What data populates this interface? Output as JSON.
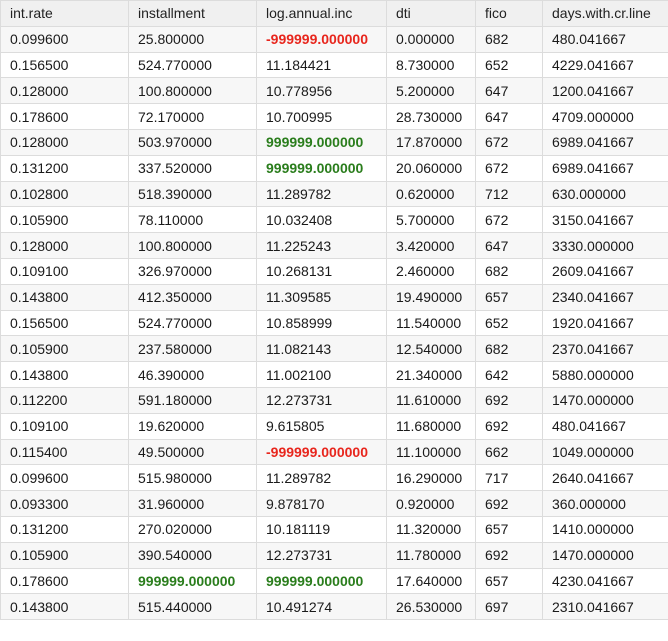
{
  "columns": [
    "int.rate",
    "installment",
    "log.annual.inc",
    "dti",
    "fico",
    "days.with.cr.line"
  ],
  "colors": {
    "header_bg": "#f0f0f0",
    "row_odd_bg": "#f7f7f7",
    "row_even_bg": "#ffffff",
    "border": "#dcdcdc",
    "negative_sentinel": "#e8261d",
    "positive_sentinel": "#2a7d1c"
  },
  "sentinels": {
    "negative": "-999999.000000",
    "positive": "999999.000000"
  },
  "rows": [
    [
      "0.099600",
      "25.800000",
      "-999999.000000",
      "0.000000",
      "682",
      "480.041667"
    ],
    [
      "0.156500",
      "524.770000",
      "11.184421",
      "8.730000",
      "652",
      "4229.041667"
    ],
    [
      "0.128000",
      "100.800000",
      "10.778956",
      "5.200000",
      "647",
      "1200.041667"
    ],
    [
      "0.178600",
      "72.170000",
      "10.700995",
      "28.730000",
      "647",
      "4709.000000"
    ],
    [
      "0.128000",
      "503.970000",
      "999999.000000",
      "17.870000",
      "672",
      "6989.041667"
    ],
    [
      "0.131200",
      "337.520000",
      "999999.000000",
      "20.060000",
      "672",
      "6989.041667"
    ],
    [
      "0.102800",
      "518.390000",
      "11.289782",
      "0.620000",
      "712",
      "630.000000"
    ],
    [
      "0.105900",
      "78.110000",
      "10.032408",
      "5.700000",
      "672",
      "3150.041667"
    ],
    [
      "0.128000",
      "100.800000",
      "11.225243",
      "3.420000",
      "647",
      "3330.000000"
    ],
    [
      "0.109100",
      "326.970000",
      "10.268131",
      "2.460000",
      "682",
      "2609.041667"
    ],
    [
      "0.143800",
      "412.350000",
      "11.309585",
      "19.490000",
      "657",
      "2340.041667"
    ],
    [
      "0.156500",
      "524.770000",
      "10.858999",
      "11.540000",
      "652",
      "1920.041667"
    ],
    [
      "0.105900",
      "237.580000",
      "11.082143",
      "12.540000",
      "682",
      "2370.041667"
    ],
    [
      "0.143800",
      "46.390000",
      "11.002100",
      "21.340000",
      "642",
      "5880.000000"
    ],
    [
      "0.112200",
      "591.180000",
      "12.273731",
      "11.610000",
      "692",
      "1470.000000"
    ],
    [
      "0.109100",
      "19.620000",
      "9.615805",
      "11.680000",
      "692",
      "480.041667"
    ],
    [
      "0.115400",
      "49.500000",
      "-999999.000000",
      "11.100000",
      "662",
      "1049.000000"
    ],
    [
      "0.099600",
      "515.980000",
      "11.289782",
      "16.290000",
      "717",
      "2640.041667"
    ],
    [
      "0.093300",
      "31.960000",
      "9.878170",
      "0.920000",
      "692",
      "360.000000"
    ],
    [
      "0.131200",
      "270.020000",
      "10.181119",
      "11.320000",
      "657",
      "1410.000000"
    ],
    [
      "0.105900",
      "390.540000",
      "12.273731",
      "11.780000",
      "692",
      "1470.000000"
    ],
    [
      "0.178600",
      "999999.000000",
      "999999.000000",
      "17.640000",
      "657",
      "4230.041667"
    ],
    [
      "0.143800",
      "515.440000",
      "10.491274",
      "26.530000",
      "697",
      "2310.041667"
    ]
  ]
}
